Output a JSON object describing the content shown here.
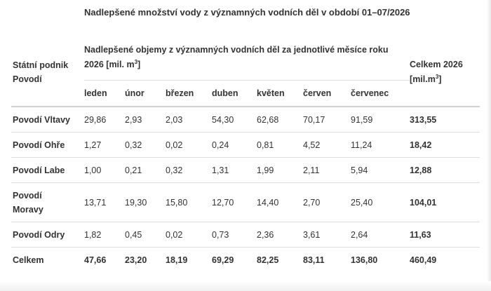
{
  "title": "Nadlepšené množství vody z významných vodních děl v období 01–07/2026",
  "header": {
    "podnik_line1": "Státní podnik",
    "podnik_line2": "Povodí",
    "group_line1": "Nadlepšené objemy z významných vodních děl za jednotlivé měsíce roku",
    "group_line2_pre": "2026 [mil. m",
    "group_line2_sup": "3",
    "group_line2_post": "]",
    "total_line1": "Celkem 2026",
    "total_line2_pre": "[mil.m",
    "total_line2_sup": "3",
    "total_line2_post": "]",
    "months": [
      "leden",
      "únor",
      "březen",
      "duben",
      "květen",
      "červen",
      "červenec"
    ]
  },
  "rows": [
    {
      "name": "Povodí Vltavy",
      "values": [
        "29,86",
        "2,93",
        "2,03",
        "54,30",
        "62,68",
        "70,17",
        "91,59"
      ],
      "total": "313,55"
    },
    {
      "name": "Povodí Ohře",
      "values": [
        "1,27",
        "0,32",
        "0,02",
        "0,24",
        "0,81",
        "4,52",
        "11,24"
      ],
      "total": "18,42"
    },
    {
      "name": "Povodí Labe",
      "values": [
        "1,00",
        "0,21",
        "0,32",
        "1,31",
        "1,99",
        "2,11",
        "5,94"
      ],
      "total": "12,88"
    },
    {
      "name_line1": "Povodí",
      "name_line2": "Moravy",
      "values": [
        "13,71",
        "19,30",
        "15,80",
        "12,70",
        "14,40",
        "2,70",
        "25,40"
      ],
      "total": "104,01"
    },
    {
      "name": "Povodí Odry",
      "values": [
        "1,82",
        "0,45",
        "0,02",
        "0,73",
        "2,36",
        "3,61",
        "2,64"
      ],
      "total": "11,63"
    }
  ],
  "sum_row": {
    "name": "Celkem",
    "values": [
      "47,66",
      "23,20",
      "18,19",
      "69,29",
      "82,25",
      "83,11",
      "136,80"
    ],
    "total": "460,49"
  }
}
